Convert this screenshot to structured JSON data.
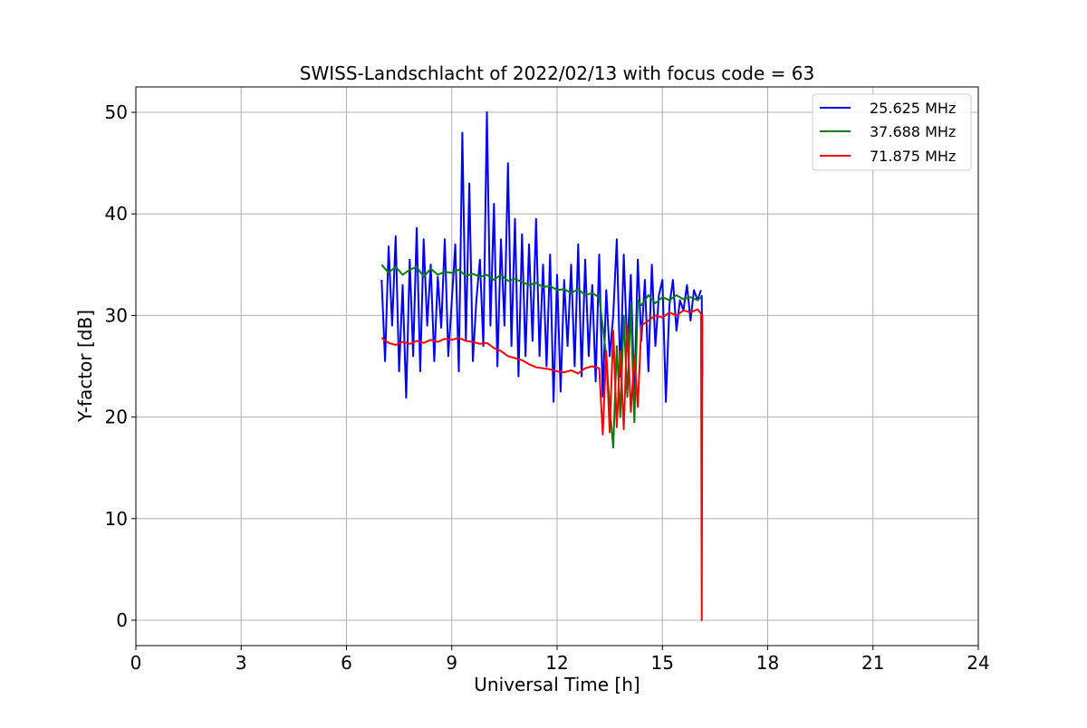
{
  "chart_data": {
    "type": "line",
    "title": "SWISS-Landschlacht of 2022/02/13 with focus code = 63",
    "xlabel": "Universal Time [h]",
    "ylabel": "Y-factor [dB]",
    "xlim": [
      0,
      24
    ],
    "ylim": [
      -2.5,
      52.5
    ],
    "xticks": [
      0,
      3,
      6,
      9,
      12,
      15,
      18,
      21,
      24
    ],
    "yticks": [
      0,
      10,
      20,
      30,
      40,
      50
    ],
    "grid": true,
    "legend_position": "top-right",
    "series": [
      {
        "name": "25.625 MHz",
        "color": "#0000ff",
        "x": [
          7.0,
          7.1,
          7.2,
          7.3,
          7.4,
          7.5,
          7.6,
          7.7,
          7.8,
          7.9,
          8.0,
          8.1,
          8.2,
          8.3,
          8.4,
          8.5,
          8.6,
          8.7,
          8.8,
          8.9,
          9.0,
          9.1,
          9.2,
          9.3,
          9.4,
          9.5,
          9.6,
          9.7,
          9.8,
          9.9,
          10.0,
          10.1,
          10.2,
          10.3,
          10.4,
          10.5,
          10.6,
          10.7,
          10.8,
          10.9,
          11.0,
          11.1,
          11.2,
          11.3,
          11.4,
          11.5,
          11.6,
          11.7,
          11.8,
          11.9,
          12.0,
          12.1,
          12.2,
          12.3,
          12.4,
          12.5,
          12.6,
          12.7,
          12.8,
          12.9,
          13.0,
          13.1,
          13.2,
          13.3,
          13.4,
          13.5,
          13.6,
          13.7,
          13.8,
          13.9,
          14.0,
          14.1,
          14.2,
          14.3,
          14.4,
          14.5,
          14.6,
          14.7,
          14.8,
          14.9,
          15.0,
          15.1,
          15.2,
          15.3,
          15.4,
          15.5,
          15.6,
          15.7,
          15.8,
          15.9,
          16.0,
          16.1
        ],
        "y": [
          33.5,
          25.5,
          36.8,
          29.0,
          37.8,
          24.5,
          33.0,
          21.9,
          35.5,
          26.0,
          38.6,
          24.5,
          37.5,
          29.0,
          35.0,
          25.5,
          33.8,
          28.8,
          37.5,
          26.0,
          31.5,
          37.0,
          24.5,
          48.0,
          27.5,
          43.0,
          25.5,
          31.5,
          35.5,
          27.0,
          50.0,
          29.0,
          41.0,
          25.0,
          37.5,
          29.0,
          45.0,
          27.0,
          39.5,
          24.0,
          38.0,
          26.0,
          37.0,
          27.5,
          39.5,
          26.0,
          35.0,
          25.0,
          36.0,
          21.5,
          34.0,
          22.5,
          33.5,
          27.0,
          35.0,
          25.0,
          37.0,
          24.0,
          35.5,
          26.0,
          33.0,
          23.5,
          36.0,
          22.0,
          32.5,
          26.0,
          30.0,
          37.5,
          24.0,
          36.0,
          26.5,
          34.0,
          22.0,
          35.5,
          27.5,
          33.5,
          24.5,
          35.0,
          27.0,
          32.0,
          33.5,
          21.5,
          31.0,
          33.5,
          28.5,
          31.5,
          30.5,
          33.0,
          29.5,
          32.5,
          31.5,
          32.5
        ],
        "tail": {
          "x": [
            16.12,
            16.14
          ],
          "y": [
            32.0,
            24.0
          ]
        }
      },
      {
        "name": "37.688 MHz",
        "color": "#008000",
        "x": [
          7.0,
          7.2,
          7.4,
          7.6,
          7.8,
          8.0,
          8.2,
          8.4,
          8.6,
          8.8,
          9.0,
          9.2,
          9.4,
          9.6,
          9.8,
          10.0,
          10.2,
          10.4,
          10.6,
          10.8,
          11.0,
          11.2,
          11.4,
          11.6,
          11.8,
          12.0,
          12.2,
          12.4,
          12.6,
          12.8,
          13.0,
          13.2,
          13.4,
          13.5,
          13.6,
          13.7,
          13.8,
          13.9,
          14.0,
          14.1,
          14.2,
          14.3,
          14.4,
          14.6,
          14.8,
          15.0,
          15.2,
          15.4,
          15.6,
          15.8,
          16.0,
          16.1
        ],
        "y": [
          35.0,
          34.2,
          34.8,
          34.0,
          34.5,
          34.8,
          33.8,
          34.6,
          34.0,
          34.3,
          34.2,
          34.5,
          33.9,
          34.1,
          33.8,
          34.0,
          33.5,
          34.0,
          33.4,
          33.6,
          33.3,
          33.0,
          33.2,
          32.8,
          32.9,
          32.5,
          32.6,
          32.2,
          32.6,
          32.0,
          32.2,
          31.8,
          26.0,
          21.0,
          17.0,
          27.0,
          20.0,
          30.0,
          22.0,
          31.0,
          19.5,
          31.5,
          31.0,
          32.0,
          31.2,
          31.8,
          31.5,
          32.0,
          31.6,
          31.8,
          31.5,
          31.8
        ]
      },
      {
        "name": "71.875 MHz",
        "color": "#ff0000",
        "x": [
          7.0,
          7.2,
          7.4,
          7.6,
          7.8,
          8.0,
          8.2,
          8.4,
          8.6,
          8.8,
          9.0,
          9.2,
          9.4,
          9.6,
          9.8,
          10.0,
          10.2,
          10.4,
          10.6,
          10.8,
          11.0,
          11.2,
          11.4,
          11.6,
          11.8,
          12.0,
          12.2,
          12.4,
          12.6,
          12.8,
          13.0,
          13.2,
          13.3,
          13.4,
          13.5,
          13.6,
          13.7,
          13.8,
          13.9,
          14.0,
          14.1,
          14.2,
          14.3,
          14.4,
          14.6,
          14.8,
          15.0,
          15.2,
          15.4,
          15.6,
          15.8,
          16.0,
          16.1,
          16.12,
          16.14
        ],
        "y": [
          27.8,
          27.3,
          27.1,
          27.4,
          27.2,
          27.5,
          27.3,
          27.6,
          27.4,
          27.7,
          27.6,
          27.8,
          27.5,
          27.4,
          27.2,
          27.3,
          26.8,
          26.5,
          26.0,
          25.8,
          25.6,
          25.2,
          24.9,
          24.8,
          24.7,
          24.5,
          24.4,
          24.6,
          24.3,
          24.8,
          25.0,
          24.8,
          18.3,
          26.5,
          18.5,
          28.5,
          19.0,
          26.5,
          18.8,
          29.0,
          20.5,
          26.0,
          21.0,
          29.0,
          29.5,
          30.0,
          29.8,
          30.3,
          30.0,
          30.5,
          30.3,
          30.6,
          30.2,
          0.0,
          30.0
        ]
      }
    ]
  }
}
